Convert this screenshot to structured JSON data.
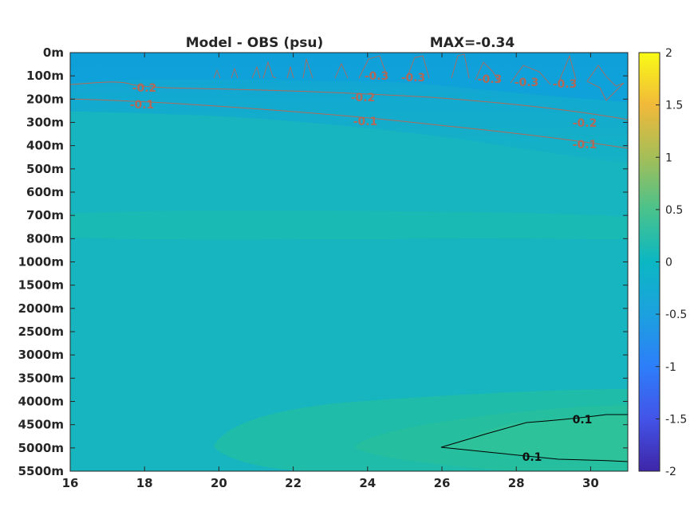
{
  "chart_data": {
    "type": "heatmap",
    "title": "Model - OBS (psu)",
    "subtitle": "MAX=-0.34",
    "x_ticks": [
      16,
      18,
      20,
      22,
      24,
      26,
      28,
      30
    ],
    "xlim": [
      16,
      31
    ],
    "y_ticks": [
      "0m",
      "100m",
      "200m",
      "300m",
      "400m",
      "500m",
      "600m",
      "700m",
      "800m",
      "1000m",
      "1500m",
      "2000m",
      "2500m",
      "3000m",
      "3500m",
      "4000m",
      "4500m",
      "5000m",
      "5500m"
    ],
    "colorbar": {
      "clim": [
        -2,
        2
      ],
      "ticks": [
        "2",
        "1.5",
        "1",
        "0.5",
        "0",
        "-0.5",
        "-1",
        "-1.5",
        "-2"
      ],
      "colormap": "parula"
    },
    "contours": [
      {
        "level": -0.3,
        "labels": [
          "-0.3",
          "-0.3",
          "-0.3",
          "-0.3",
          "-0.3"
        ]
      },
      {
        "level": -0.2,
        "labels": [
          "-0.2",
          "-0.2",
          "-0.2"
        ]
      },
      {
        "level": -0.1,
        "labels": [
          "-0.1",
          "-0.1",
          "-0.1"
        ]
      },
      {
        "level": 0.1,
        "labels": [
          "0.1",
          "0.1"
        ]
      }
    ],
    "colors": {
      "surface": "#11a6d4",
      "background": "#16b5bf",
      "mid_band": "#19bab3",
      "bottom_band": "#22bfa8",
      "bottom_core": "#2cc29f",
      "negative_contour": "#b06a5a",
      "positive_contour": "#000000"
    }
  }
}
